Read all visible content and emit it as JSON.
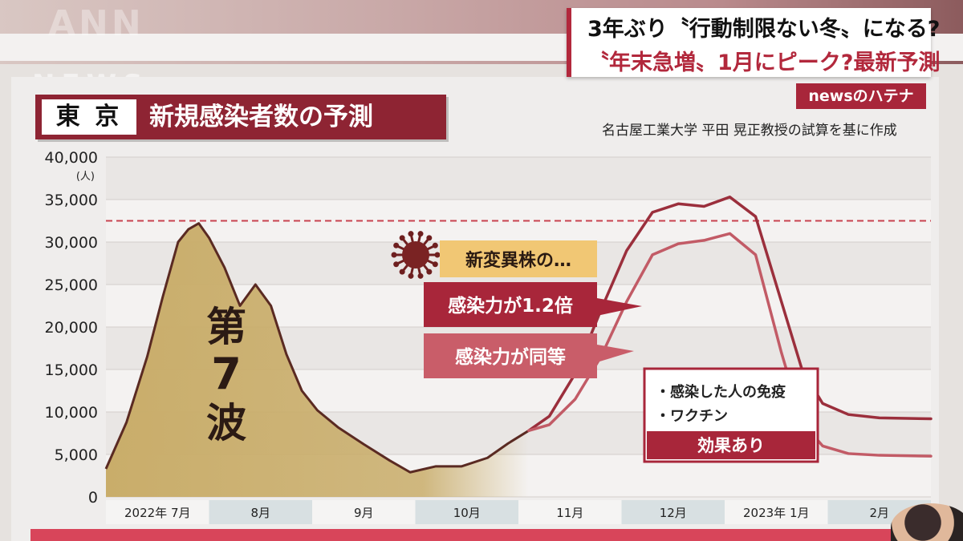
{
  "broadcast": {
    "logo": "ANN",
    "logo_sub": "NEWS",
    "headline_line1": "3年ぶり〝行動制限ない冬〟になる?",
    "headline_line2": "〝年末急増〟1月にピーク?最新予測",
    "segment_badge": "newsのハテナ"
  },
  "panel": {
    "location": "東 京",
    "title": "新規感染者数の予測",
    "source": "名古屋工業大学 平田 晃正教授の試算を基に作成"
  },
  "colors": {
    "accent": "#a8263a",
    "dark_red": "#8e2433",
    "wave_fill": "#c9ad6a",
    "line_dark": "#9b2f3c",
    "line_light": "#c25b66",
    "reference_line": "#c8414f",
    "callout_yellow": "#f1c774"
  },
  "chart_data": {
    "type": "line",
    "y_unit": "(人)",
    "ylim": [
      0,
      40000
    ],
    "y_ticks": [
      "40,000",
      "35,000",
      "30,000",
      "25,000",
      "20,000",
      "15,000",
      "10,000",
      "5,000",
      "0"
    ],
    "y_tick_values": [
      40000,
      35000,
      30000,
      25000,
      20000,
      15000,
      10000,
      5000,
      0
    ],
    "x_ticks": [
      "2022年 7月",
      "8月",
      "9月",
      "10月",
      "11月",
      "12月",
      "2023年 1月",
      "2月"
    ],
    "reference_line": 32500,
    "wave_label": [
      "第",
      "7",
      "波"
    ],
    "observed": {
      "x": [
        0.0,
        0.2,
        0.4,
        0.55,
        0.7,
        0.8,
        0.9,
        1.0,
        1.15,
        1.3,
        1.45,
        1.6,
        1.75,
        1.9,
        2.05,
        2.25,
        2.5,
        2.75,
        2.95,
        3.2,
        3.45,
        3.7,
        3.9,
        4.1
      ],
      "values": [
        3300,
        8800,
        16500,
        23500,
        30000,
        31500,
        32200,
        30500,
        27000,
        22500,
        25000,
        22500,
        16800,
        12500,
        10200,
        8200,
        6200,
        4300,
        2900,
        3600,
        3600,
        4600,
        6300,
        7800
      ]
    },
    "series": [
      {
        "name": "感染力が1.2倍",
        "x": [
          4.1,
          4.3,
          4.55,
          4.8,
          5.05,
          5.3,
          5.55,
          5.8,
          6.05,
          6.3,
          6.55,
          6.75,
          6.95,
          7.2,
          7.5,
          8.0
        ],
        "values": [
          7800,
          9500,
          14500,
          22000,
          29000,
          33500,
          34500,
          34200,
          35300,
          33000,
          23000,
          15000,
          11000,
          9700,
          9300,
          9200
        ]
      },
      {
        "name": "感染力が同等",
        "x": [
          4.1,
          4.3,
          4.55,
          4.8,
          5.05,
          5.3,
          5.55,
          5.8,
          6.05,
          6.3,
          6.55,
          6.75,
          6.95,
          7.2,
          7.5,
          8.0
        ],
        "values": [
          7800,
          8500,
          11500,
          16500,
          23000,
          28500,
          29800,
          30200,
          31000,
          28500,
          17000,
          8800,
          6000,
          5100,
          4900,
          4800
        ]
      }
    ],
    "callouts": {
      "variant": "新変異株の…",
      "high": "感染力が1.2倍",
      "equal": "感染力が同等",
      "effects": [
        "・感染した人の免疫",
        "・ワクチン"
      ],
      "effects_footer": "効果あり"
    }
  }
}
